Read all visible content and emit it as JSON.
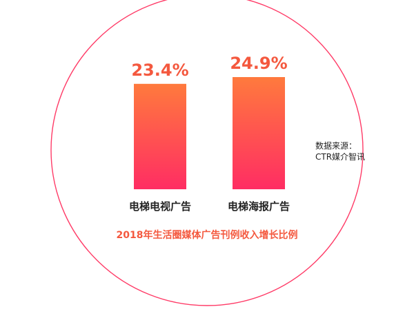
{
  "chart_data": {
    "type": "bar",
    "title": "2018年生活圈媒体广告刊例收入增长比例",
    "categories": [
      "电梯电视广告",
      "电梯海报广告"
    ],
    "values": [
      23.4,
      24.9
    ],
    "value_labels": [
      "23.4%",
      "24.9%"
    ],
    "xlabel": "",
    "ylabel": "",
    "ylim": [
      0,
      26
    ],
    "grid": false,
    "legend": "none"
  },
  "source": {
    "line1": "数据来源：",
    "line2": "CTR媒介智讯"
  },
  "colors": {
    "bar_top": "#ff7a3d",
    "bar_bottom": "#ff2d63",
    "value_label": "#f4583e",
    "title": "#f4583e",
    "circle_stroke": "#ff3b67",
    "category_text": "#222222"
  }
}
